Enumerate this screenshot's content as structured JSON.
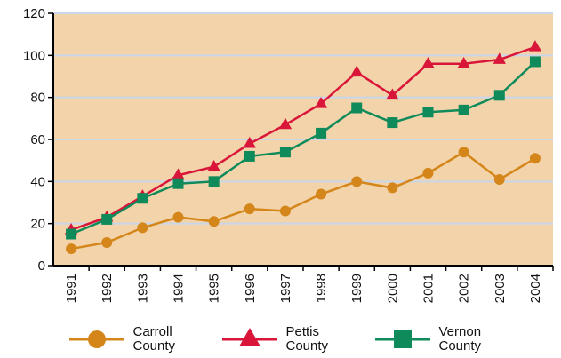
{
  "chart_data": {
    "type": "line",
    "categories": [
      "1991",
      "1992",
      "1993",
      "1994",
      "1995",
      "1996",
      "1997",
      "1998",
      "1999",
      "2000",
      "2001",
      "2002",
      "2003",
      "2004"
    ],
    "series": [
      {
        "name": "Carroll County",
        "color": "#d4861a",
        "marker": "circle",
        "values": [
          8,
          11,
          18,
          23,
          21,
          27,
          26,
          34,
          40,
          37,
          44,
          54,
          41,
          51
        ]
      },
      {
        "name": "Pettis County",
        "color": "#d9163a",
        "marker": "triangle",
        "values": [
          17,
          23,
          33,
          43,
          47,
          58,
          67,
          77,
          92,
          81,
          96,
          96,
          98,
          104
        ]
      },
      {
        "name": "Vernon County",
        "color": "#0f8a5a",
        "marker": "square",
        "values": [
          15,
          22,
          32,
          39,
          40,
          52,
          54,
          63,
          75,
          68,
          73,
          74,
          81,
          97
        ]
      }
    ],
    "ylim": [
      0,
      120
    ],
    "yticks": [
      0,
      20,
      40,
      60,
      80,
      100,
      120
    ],
    "grid": true,
    "background": "#f3d3a9",
    "legend": "bottom"
  }
}
